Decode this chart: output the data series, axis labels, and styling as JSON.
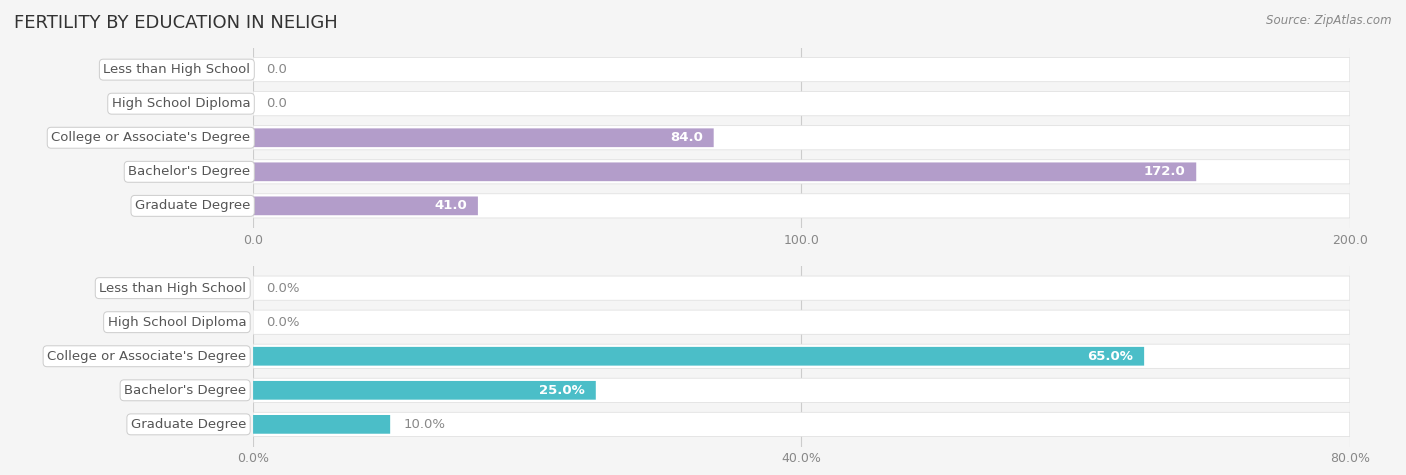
{
  "title": "FERTILITY BY EDUCATION IN NELIGH",
  "source_text": "Source: ZipAtlas.com",
  "top_chart": {
    "categories": [
      "Less than High School",
      "High School Diploma",
      "College or Associate's Degree",
      "Bachelor's Degree",
      "Graduate Degree"
    ],
    "values": [
      0.0,
      0.0,
      84.0,
      172.0,
      41.0
    ],
    "bar_color": "#b39dca",
    "xlim": [
      0,
      200
    ],
    "xticks": [
      0.0,
      100.0,
      200.0
    ],
    "xticklabels": [
      "0.0",
      "100.0",
      "200.0"
    ],
    "value_suffix": ""
  },
  "bottom_chart": {
    "categories": [
      "Less than High School",
      "High School Diploma",
      "College or Associate's Degree",
      "Bachelor's Degree",
      "Graduate Degree"
    ],
    "values": [
      0.0,
      0.0,
      65.0,
      25.0,
      10.0
    ],
    "bar_color": "#4bbec8",
    "xlim": [
      0,
      80
    ],
    "xticks": [
      0.0,
      40.0,
      80.0
    ],
    "xticklabels": [
      "0.0%",
      "40.0%",
      "80.0%"
    ],
    "value_suffix": "%"
  },
  "bg_color": "#f5f5f5",
  "bar_bg_color": "#ffffff",
  "label_box_color": "#ffffff",
  "label_box_edge": "#cccccc",
  "grid_color": "#cccccc",
  "label_color_inside": "#ffffff",
  "label_color_outside": "#888888",
  "bar_height": 0.55,
  "label_fontsize": 9.5,
  "tick_fontsize": 9,
  "title_fontsize": 13
}
